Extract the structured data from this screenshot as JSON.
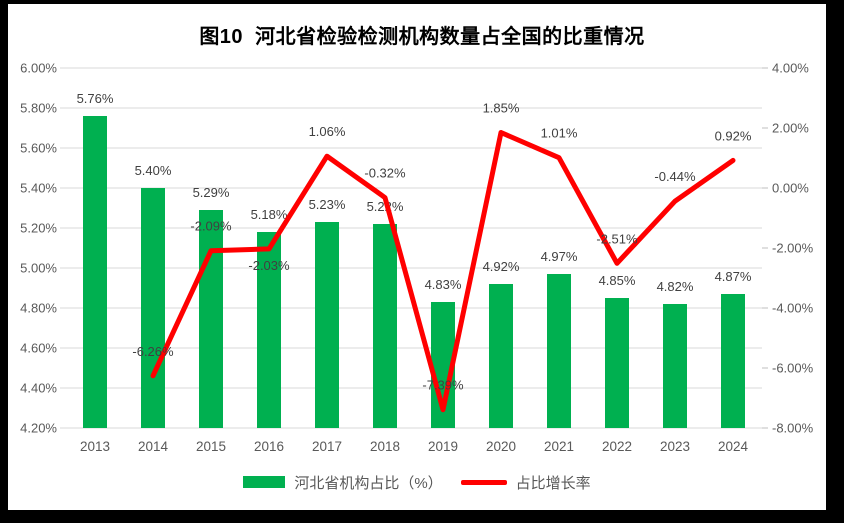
{
  "title": "图10  河北省检验检测机构数量占全国的比重情况",
  "legend": [
    {
      "label": "河北省机构占比（%）",
      "color": "#00B050",
      "swatch": "bar"
    },
    {
      "label": "占比增长率",
      "color": "#FF0000",
      "swatch": "line"
    }
  ],
  "colors": {
    "bar": "#00B050",
    "line": "#FF0000",
    "gridline": "#D9D9D9",
    "tick": "#BFBFBF",
    "axis_text": "#595959",
    "data_label_text": "#404040",
    "frame": "#000000",
    "background": "#FFFFFF"
  },
  "chart_data": {
    "type": "combo_bar_line",
    "title": "图10  河北省检验检测机构数量占全国的比重情况",
    "categories": [
      "2013",
      "2014",
      "2015",
      "2016",
      "2017",
      "2018",
      "2019",
      "2020",
      "2021",
      "2022",
      "2023",
      "2024"
    ],
    "series": [
      {
        "name": "河北省机构占比（%）",
        "type": "bar",
        "axis": "left",
        "color": "#00B050",
        "values": [
          5.76,
          5.4,
          5.29,
          5.18,
          5.23,
          5.22,
          4.83,
          4.92,
          4.97,
          4.85,
          4.82,
          4.87
        ],
        "labels": [
          "5.76%",
          "5.40%",
          "5.29%",
          "5.18%",
          "5.23%",
          "5.22%",
          "4.83%",
          "4.92%",
          "4.97%",
          "4.85%",
          "4.82%",
          "4.87%"
        ]
      },
      {
        "name": "占比增长率",
        "type": "line",
        "axis": "right",
        "color": "#FF0000",
        "values": [
          null,
          -6.26,
          -2.09,
          -2.03,
          1.06,
          -0.32,
          -7.39,
          1.85,
          1.01,
          -2.51,
          -0.44,
          0.92
        ],
        "labels": [
          null,
          "-6.26%",
          "-2.09%",
          "-2.03%",
          "1.06%",
          "-0.32%",
          "-7.39%",
          "1.85%",
          "1.01%",
          "-2.51%",
          "-0.44%",
          "0.92%"
        ],
        "label_positions": [
          null,
          "above",
          "above",
          "below",
          "above",
          "above",
          "above",
          "above",
          "above",
          "above",
          "above",
          "above"
        ]
      }
    ],
    "left_axis": {
      "min": 4.2,
      "max": 6.0,
      "step": 0.2,
      "tick_labels": [
        "6.00%",
        "5.80%",
        "5.60%",
        "5.40%",
        "5.20%",
        "5.00%",
        "4.80%",
        "4.60%",
        "4.40%",
        "4.20%"
      ]
    },
    "right_axis": {
      "min": -8.0,
      "max": 4.0,
      "step": 2.0,
      "tick_labels": [
        "4.00%",
        "2.00%",
        "0.00%",
        "-2.00%",
        "-4.00%",
        "-6.00%",
        "-8.00%"
      ]
    },
    "grid": true,
    "legend_position": "bottom"
  }
}
